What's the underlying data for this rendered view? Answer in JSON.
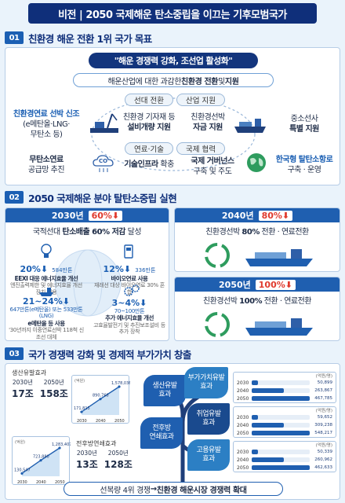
{
  "title": "비전 | 2050 국제해운 탄소중립을 이끄는 기후모범국가",
  "s1": {
    "num": "01",
    "title": "친환경 해운 전환 1위 국가 목표",
    "slogan": "\"해운 경쟁력 강화, 조선업 활성화\"",
    "sub_plain_a": "해운산업에 대한 과감한 ",
    "sub_bold_a": "친환경 전환",
    "sub_plain_b": " 및 ",
    "sub_bold_b": "지원",
    "tag_lead": "선대 전환",
    "tag_industry": "산업 지원",
    "tag_fuel": "연료·기술",
    "tag_coop": "국제 협력",
    "left_top_l1": "친환경연료 선박 신조",
    "left_top_l2": "(e메탄올·LNG·",
    "left_top_l3": "무탄소 등)",
    "ship_mid_l1": "친환경 기자재 등",
    "ship_mid_l2": "설비개량 지원",
    "ship2_l1": "친환경선박",
    "ship2_l2": "자금 지원",
    "right_top_l1": "중소선사",
    "right_top_l2": "특별 지원",
    "bot1_l1": "무탄소연료",
    "bot1_l2": "공급망 추진",
    "co_icon": "CO",
    "bot2_bold": "기술인프라",
    "bot2_plain": " 확충",
    "bot3_l1": "국제 거버넌스",
    "bot3_l2": "구축 및 주도",
    "bot4_l1": "한국형 탈탄소항로",
    "bot4_l2": "구축 · 운영"
  },
  "s2": {
    "num": "02",
    "title": "2050 국제해운 분야 탈탄소중립 실현",
    "y2030": "2030년",
    "p2030": "60%⬇",
    "d2030_a": "국적선대 ",
    "d2030_b": "탄소배출 60% 저감",
    "d2030_c": " 달성",
    "i1_big": "20%⬇",
    "i1_small": "584만톤",
    "i1_l1": "EEXI 대응 에너지효율 개선",
    "i1_l2": "엔진출력제한 및 에너지효율 개선장치 적용",
    "i2_big": "12%⬇",
    "i2_small": "336만톤",
    "i2_l1": "바이오연료 사용",
    "i2_l2": "재래선 대상 바이오연료 30% 혼합",
    "i3_big": "21~24%⬇",
    "i3_l1": "647만톤(e메탄올) 또는 533만톤(LNG)",
    "i3_l2": "e메탄올 등 사용",
    "i3_l3": "'30년까지 이중연료선박 118척 신조선 대체",
    "i4_big": "3~4%⬇",
    "i4_small": "70~100만톤",
    "i4_l1": "추가 에너지효율 개선",
    "i4_l2": "고효율발전기 및 추진보조설비 등 추가 장착",
    "y2040": "2040년",
    "p2040": "80%⬇",
    "d2040_a": "친환경선박 ",
    "d2040_b": "80%",
    "d2040_c": " 전환 · 연료전환",
    "y2050": "2050년",
    "p2050": "100%⬇",
    "d2050_a": "친환경선박 ",
    "d2050_b": "100%",
    "d2050_c": " 전환 · 연료전환"
  },
  "s3": {
    "num": "03",
    "title": "국가 경쟁력 강화 및 경제적 부가가치 창출",
    "prod_label": "생산유발효과",
    "prod_y1": "2030년",
    "prod_v1": "17조",
    "prod_y2": "2050년",
    "prod_v2": "158조",
    "chart1_unit": "(억원)",
    "chart1_vals": [
      "171,815",
      "890,768",
      "1,578,036"
    ],
    "chart1_years": [
      "2030",
      "2040",
      "2050"
    ],
    "chart2_unit": "(억원)",
    "chart2_vals": [
      "130,547",
      "723,880",
      "1,283,407"
    ],
    "chart2_years": [
      "2030",
      "2040",
      "2050"
    ],
    "back_label": "전후방연쇄효과",
    "back_y1": "2030년",
    "back_v1": "13조",
    "back_y2": "2050년",
    "back_v2": "128조",
    "leaf1_l1": "생산유발",
    "leaf1_l2": "효과",
    "leaf2_l1": "부가가치유발",
    "leaf2_l2": "효과",
    "leaf3_l1": "전후방",
    "leaf3_l2": "연쇄효과",
    "leaf4_l1": "취업유발",
    "leaf4_l2": "효과",
    "leaf5_l1": "고용유발",
    "leaf5_l2": "효과",
    "bars_unit": "(억원/명)",
    "bars": [
      {
        "rows": [
          {
            "y": "2030",
            "v": "50,899",
            "f": 0.11
          },
          {
            "y": "2040",
            "v": "263,867",
            "f": 0.56
          },
          {
            "y": "2050",
            "v": "467,785",
            "f": 1.0
          }
        ]
      },
      {
        "rows": [
          {
            "y": "2030",
            "v": "59,652",
            "f": 0.11
          },
          {
            "y": "2040",
            "v": "309,238",
            "f": 0.56
          },
          {
            "y": "2050",
            "v": "548,217",
            "f": 1.0
          }
        ]
      },
      {
        "rows": [
          {
            "y": "2030",
            "v": "50,339",
            "f": 0.11
          },
          {
            "y": "2040",
            "v": "260,962",
            "f": 0.56
          },
          {
            "y": "2050",
            "v": "462,633",
            "f": 1.0
          }
        ]
      }
    ],
    "bottom_a": "선복량 4위 경쟁 ",
    "bottom_arrow": "→",
    "bottom_b": " 친환경 해운시장 경쟁력 확대"
  },
  "colors": {
    "navy": "#0f2f7a",
    "blue": "#1f5fb0",
    "green": "#2e9c5e",
    "red": "#e03b2e"
  }
}
